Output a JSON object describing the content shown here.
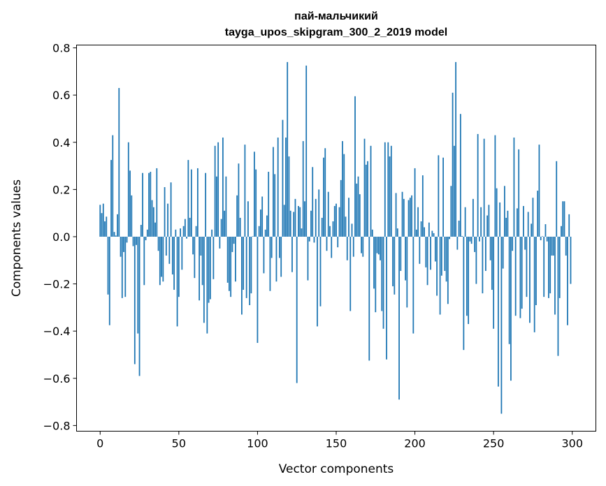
{
  "chart_data": {
    "type": "bar",
    "title": "пай-мальчикий",
    "subtitle": "tayga_upos_skipgram_300_2_2019 model",
    "xlabel": "Vector components",
    "ylabel": "Components values",
    "xlim": [
      -15,
      315
    ],
    "ylim": [
      -0.824,
      0.812
    ],
    "xticks": [
      0,
      50,
      100,
      150,
      200,
      250,
      300
    ],
    "xtick_labels": [
      "0",
      "50",
      "100",
      "150",
      "200",
      "250",
      "300"
    ],
    "yticks": [
      -0.8,
      -0.6,
      -0.4,
      -0.2,
      0.0,
      0.2,
      0.4,
      0.6,
      0.8
    ],
    "ytick_labels": [
      "−0.8",
      "−0.6",
      "−0.4",
      "−0.2",
      "0.0",
      "0.2",
      "0.4",
      "0.6",
      "0.8"
    ],
    "grid": false,
    "bar_color": "#1f77b4",
    "values": [
      0.135,
      0.1,
      0.14,
      0.065,
      0.085,
      -0.245,
      -0.375,
      0.325,
      0.43,
      0.02,
      0.005,
      0.095,
      0.63,
      -0.085,
      -0.26,
      -0.065,
      -0.255,
      -0.025,
      0.4,
      0.28,
      0.175,
      -0.04,
      -0.54,
      -0.035,
      -0.41,
      -0.59,
      0.05,
      0.27,
      -0.205,
      -0.015,
      0.03,
      0.27,
      0.275,
      0.155,
      0.125,
      0.06,
      0.29,
      -0.06,
      -0.205,
      -0.17,
      -0.19,
      0.21,
      -0.08,
      0.14,
      -0.115,
      0.23,
      -0.16,
      -0.225,
      0.03,
      -0.38,
      -0.255,
      0.035,
      -0.14,
      0.045,
      0.075,
      -0.008,
      0.325,
      0.08,
      0.285,
      -0.075,
      -0.175,
      0.045,
      0.29,
      -0.27,
      -0.08,
      -0.205,
      -0.365,
      0.27,
      -0.41,
      -0.28,
      -0.265,
      0.03,
      -0.18,
      0.385,
      0.255,
      0.4,
      -0.05,
      0.075,
      0.42,
      0.11,
      0.255,
      -0.195,
      -0.23,
      -0.255,
      -0.065,
      -0.03,
      -0.19,
      0.175,
      0.31,
      0.08,
      -0.33,
      -0.225,
      0.39,
      -0.26,
      0.15,
      -0.29,
      -0.24,
      0.002,
      0.36,
      0.285,
      -0.45,
      0.045,
      0.115,
      0.17,
      -0.155,
      0.03,
      0.09,
      0.275,
      -0.23,
      -0.09,
      0.38,
      0.265,
      -0.19,
      0.42,
      -0.09,
      -0.17,
      0.495,
      0.135,
      0.42,
      0.74,
      0.34,
      0.11,
      -0.15,
      0.105,
      0.16,
      -0.62,
      0.13,
      0.125,
      0.035,
      0.405,
      0.15,
      0.725,
      -0.185,
      -0.02,
      0.11,
      0.295,
      -0.025,
      0.16,
      -0.38,
      0.2,
      -0.295,
      0.08,
      0.335,
      0.375,
      -0.06,
      0.19,
      0.045,
      -0.09,
      0.065,
      0.13,
      0.14,
      -0.045,
      0.125,
      0.24,
      0.405,
      0.35,
      0.085,
      -0.1,
      0.165,
      -0.315,
      0.055,
      -0.085,
      0.595,
      0.225,
      0.255,
      0.18,
      -0.07,
      -0.085,
      0.415,
      0.305,
      0.32,
      -0.525,
      0.385,
      0.03,
      -0.22,
      -0.32,
      -0.07,
      -0.075,
      -0.1,
      -0.315,
      -0.39,
      0.4,
      -0.52,
      0.4,
      0.34,
      0.385,
      -0.21,
      -0.245,
      0.185,
      0.035,
      -0.69,
      -0.145,
      0.19,
      0.16,
      -0.185,
      -0.3,
      0.155,
      0.165,
      0.175,
      -0.41,
      0.29,
      0.03,
      0.125,
      -0.115,
      0.065,
      0.26,
      0.04,
      -0.13,
      -0.205,
      0.06,
      -0.14,
      0.025,
      0.015,
      -0.105,
      -0.25,
      0.345,
      -0.33,
      -0.165,
      0.335,
      -0.145,
      -0.19,
      -0.285,
      -0.01,
      0.215,
      0.61,
      0.385,
      0.74,
      -0.055,
      0.068,
      0.52,
      0.003,
      -0.48,
      0.125,
      -0.335,
      -0.37,
      -0.02,
      -0.03,
      0.16,
      -0.065,
      -0.2,
      0.435,
      -0.02,
      0.125,
      -0.24,
      0.415,
      -0.145,
      0.09,
      0.135,
      -0.1,
      -0.225,
      -0.39,
      0.43,
      0.205,
      -0.635,
      0.145,
      -0.75,
      -0.135,
      0.215,
      0.08,
      0.11,
      -0.455,
      -0.61,
      -0.06,
      0.42,
      -0.335,
      0.12,
      0.37,
      -0.345,
      -0.305,
      0.13,
      -0.055,
      -0.255,
      0.105,
      -0.365,
      0.055,
      0.165,
      -0.405,
      -0.29,
      0.195,
      0.39,
      -0.015,
      0.002,
      -0.255,
      0.053,
      -0.02,
      -0.26,
      -0.24,
      -0.08,
      -0.08,
      -0.33,
      0.32,
      -0.505,
      -0.26,
      0.045,
      0.15,
      0.15,
      -0.08,
      -0.375,
      0.095,
      -0.2
    ]
  }
}
